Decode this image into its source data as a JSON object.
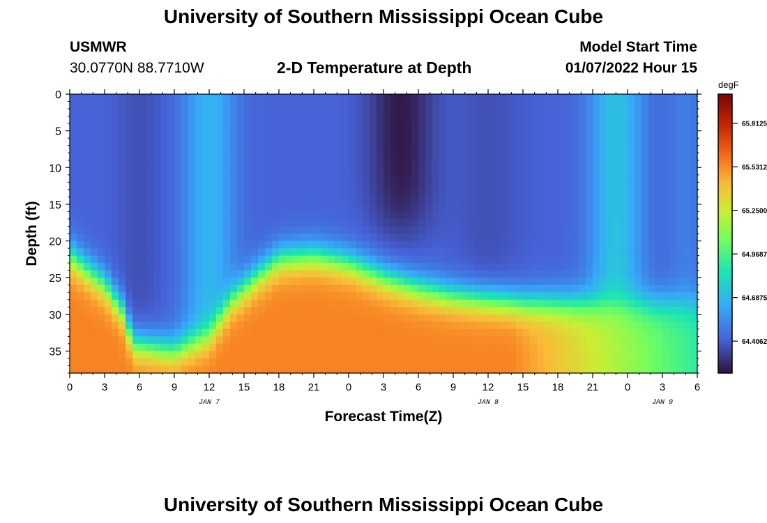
{
  "page": {
    "title": "University of Southern Mississippi Ocean Cube",
    "title_bottom": "University of Southern Mississippi Ocean Cube",
    "station": "USMWR",
    "coords": "30.0770N  88.7710W",
    "plot_title": "2-D Temperature at Depth",
    "model_label": "Model Start Time",
    "model_time": "01/07/2022 Hour 15"
  },
  "chart_data": {
    "type": "heatmap",
    "title": "2-D Temperature at Depth",
    "xlabel": "Forecast Time(Z)",
    "ylabel": "Depth (ft)",
    "units": "degF",
    "x_range_hours": [
      0,
      54
    ],
    "x_ticks": [
      "0",
      "3",
      "6",
      "9",
      "12",
      "15",
      "18",
      "21",
      "0",
      "3",
      "6",
      "9",
      "12",
      "15",
      "18",
      "21",
      "0",
      "3",
      "6"
    ],
    "date_labels": [
      {
        "label": "JAN 7",
        "at_tick": 4
      },
      {
        "label": "JAN 8",
        "at_tick": 12
      },
      {
        "label": "JAN 9",
        "at_tick": 17
      }
    ],
    "y_range": [
      0,
      38
    ],
    "y_ticks": [
      0,
      5,
      10,
      15,
      20,
      25,
      30,
      35
    ],
    "colorbar": {
      "label": "degF",
      "min": 64.2,
      "max": 66.0,
      "ticks": [
        "65.8125",
        "65.5312",
        "65.2500",
        "64.9687",
        "64.6875",
        "64.4062"
      ]
    },
    "field_notes": "Cold core (~64.2 F) near hour 29 in upper 15 ft; warm bottom layer (~65.5 F) below 25-30 ft; surface ~64.5 F.",
    "grid_visible": false,
    "legend": "colorbar-right"
  }
}
